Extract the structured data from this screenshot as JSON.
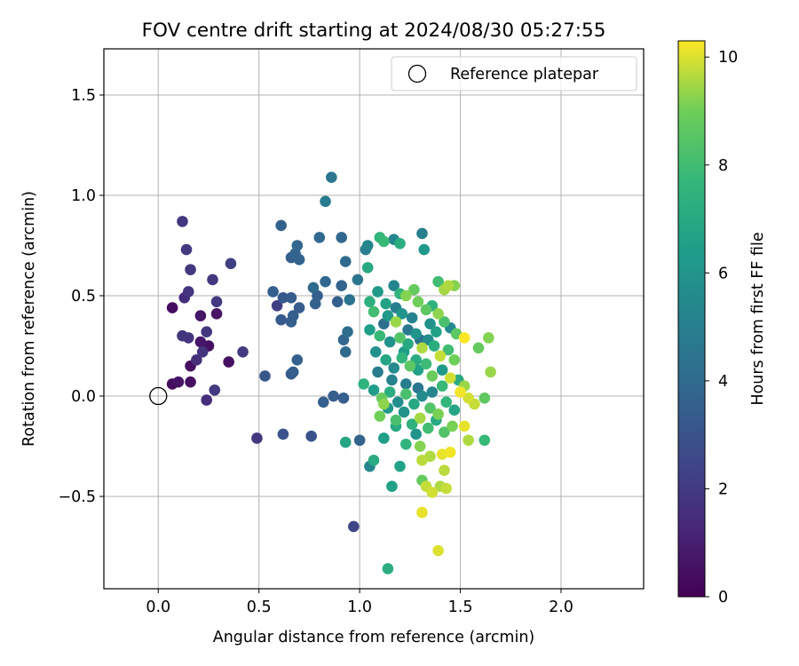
{
  "chart_data": {
    "type": "scatter",
    "title": "FOV centre drift starting at 2024/08/30 05:27:55",
    "xlabel": "Angular distance from reference (arcmin)",
    "ylabel": "Rotation from reference (arcmin)",
    "xlim": [
      -0.27,
      2.41
    ],
    "ylim": [
      -0.96,
      1.73
    ],
    "xticks": [
      "0.0",
      "0.5",
      "1.0",
      "1.5",
      "2.0"
    ],
    "yticks": [
      "−0.5",
      "0.0",
      "0.5",
      "1.0",
      "1.5"
    ],
    "grid": true,
    "legend": {
      "position": "top-right",
      "entries": [
        {
          "label": "Reference platepar",
          "marker": "open-circle"
        }
      ]
    },
    "reference_point": {
      "x": 0.0,
      "y": 0.0
    },
    "colorbar": {
      "label": "Hours from first FF file",
      "colormap": "viridis",
      "range": [
        0,
        10.3
      ],
      "ticks": [
        "0",
        "2",
        "4",
        "6",
        "8",
        "10"
      ]
    },
    "points": [
      {
        "x": 0.07,
        "y": 0.44,
        "h": 0.4
      },
      {
        "x": 0.12,
        "y": 0.87,
        "h": 1.9
      },
      {
        "x": 0.14,
        "y": 0.73,
        "h": 2.0
      },
      {
        "x": 0.16,
        "y": 0.63,
        "h": 1.9
      },
      {
        "x": 0.13,
        "y": 0.49,
        "h": 1.5
      },
      {
        "x": 0.15,
        "y": 0.52,
        "h": 1.8
      },
      {
        "x": 0.21,
        "y": 0.4,
        "h": 0.7
      },
      {
        "x": 0.27,
        "y": 0.58,
        "h": 1.9
      },
      {
        "x": 0.29,
        "y": 0.47,
        "h": 2.0
      },
      {
        "x": 0.29,
        "y": 0.41,
        "h": 0.6
      },
      {
        "x": 0.36,
        "y": 0.66,
        "h": 2.2
      },
      {
        "x": 0.12,
        "y": 0.3,
        "h": 1.8
      },
      {
        "x": 0.15,
        "y": 0.29,
        "h": 1.8
      },
      {
        "x": 0.21,
        "y": 0.27,
        "h": 0.7
      },
      {
        "x": 0.25,
        "y": 0.25,
        "h": 0.5
      },
      {
        "x": 0.24,
        "y": 0.32,
        "h": 1.9
      },
      {
        "x": 0.22,
        "y": 0.22,
        "h": 1.7
      },
      {
        "x": 0.19,
        "y": 0.18,
        "h": 1.6
      },
      {
        "x": 0.16,
        "y": 0.15,
        "h": 0.5
      },
      {
        "x": 0.16,
        "y": 0.07,
        "h": 0.5
      },
      {
        "x": 0.07,
        "y": 0.06,
        "h": 0.4
      },
      {
        "x": 0.1,
        "y": 0.07,
        "h": 0.6
      },
      {
        "x": 0.28,
        "y": 0.03,
        "h": 2.0
      },
      {
        "x": 0.24,
        "y": -0.02,
        "h": 1.5
      },
      {
        "x": 0.35,
        "y": 0.17,
        "h": 0.5
      },
      {
        "x": 0.42,
        "y": 0.22,
        "h": 2.0
      },
      {
        "x": 0.49,
        "y": -0.21,
        "h": 1.9
      },
      {
        "x": 0.53,
        "y": 0.1,
        "h": 3.2
      },
      {
        "x": 0.61,
        "y": 0.85,
        "h": 3.6
      },
      {
        "x": 0.57,
        "y": 0.52,
        "h": 3.5
      },
      {
        "x": 0.59,
        "y": 0.45,
        "h": 2.2
      },
      {
        "x": 0.62,
        "y": 0.49,
        "h": 3.3
      },
      {
        "x": 0.61,
        "y": 0.38,
        "h": 3.3
      },
      {
        "x": 0.62,
        "y": -0.19,
        "h": 3.0
      },
      {
        "x": 0.66,
        "y": 0.11,
        "h": 3.3
      },
      {
        "x": 0.67,
        "y": 0.12,
        "h": 3.5
      },
      {
        "x": 0.69,
        "y": 0.18,
        "h": 3.6
      },
      {
        "x": 0.66,
        "y": 0.37,
        "h": 3.5
      },
      {
        "x": 0.67,
        "y": 0.4,
        "h": 3.5
      },
      {
        "x": 0.66,
        "y": 0.49,
        "h": 3.4
      },
      {
        "x": 0.7,
        "y": 0.44,
        "h": 3.4
      },
      {
        "x": 0.69,
        "y": 0.75,
        "h": 3.8
      },
      {
        "x": 0.68,
        "y": 0.71,
        "h": 3.7
      },
      {
        "x": 0.7,
        "y": 0.68,
        "h": 3.7
      },
      {
        "x": 0.66,
        "y": 0.69,
        "h": 3.4
      },
      {
        "x": 0.76,
        "y": -0.2,
        "h": 3.0
      },
      {
        "x": 0.77,
        "y": 0.54,
        "h": 4.0
      },
      {
        "x": 0.78,
        "y": 0.46,
        "h": 3.6
      },
      {
        "x": 0.79,
        "y": 0.5,
        "h": 3.5
      },
      {
        "x": 0.8,
        "y": 0.79,
        "h": 3.9
      },
      {
        "x": 0.82,
        "y": -0.03,
        "h": 3.5
      },
      {
        "x": 0.83,
        "y": 0.97,
        "h": 4.8
      },
      {
        "x": 0.83,
        "y": 0.57,
        "h": 3.8
      },
      {
        "x": 0.86,
        "y": 1.09,
        "h": 4.5
      },
      {
        "x": 0.87,
        "y": 0.0,
        "h": 3.4
      },
      {
        "x": 0.89,
        "y": 0.47,
        "h": 3.5
      },
      {
        "x": 0.91,
        "y": 0.79,
        "h": 3.9
      },
      {
        "x": 0.91,
        "y": 0.55,
        "h": 3.7
      },
      {
        "x": 0.92,
        "y": 0.28,
        "h": 3.8
      },
      {
        "x": 0.93,
        "y": 0.67,
        "h": 4.0
      },
      {
        "x": 0.94,
        "y": 0.32,
        "h": 4.2
      },
      {
        "x": 0.95,
        "y": 0.48,
        "h": 4.4
      },
      {
        "x": 0.92,
        "y": -0.01,
        "h": 3.5
      },
      {
        "x": 0.93,
        "y": -0.23,
        "h": 6.8
      },
      {
        "x": 0.93,
        "y": 0.22,
        "h": 4.0
      },
      {
        "x": 0.97,
        "y": -0.65,
        "h": 2.4
      },
      {
        "x": 0.99,
        "y": 0.58,
        "h": 4.5
      },
      {
        "x": 1.0,
        "y": -0.22,
        "h": 3.7
      },
      {
        "x": 1.03,
        "y": 0.73,
        "h": 4.8
      },
      {
        "x": 1.04,
        "y": 0.64,
        "h": 7.0
      },
      {
        "x": 1.04,
        "y": 0.75,
        "h": 5.3
      },
      {
        "x": 1.1,
        "y": 0.79,
        "h": 7.6
      },
      {
        "x": 1.12,
        "y": 0.77,
        "h": 7.8
      },
      {
        "x": 1.17,
        "y": 0.78,
        "h": 5.4
      },
      {
        "x": 1.2,
        "y": 0.76,
        "h": 7.2
      },
      {
        "x": 1.31,
        "y": 0.81,
        "h": 5.0
      },
      {
        "x": 1.32,
        "y": 0.73,
        "h": 6.2
      },
      {
        "x": 1.05,
        "y": -0.35,
        "h": 5.4
      },
      {
        "x": 1.07,
        "y": -0.32,
        "h": 7.1
      },
      {
        "x": 1.16,
        "y": -0.45,
        "h": 6.6
      },
      {
        "x": 1.14,
        "y": -0.86,
        "h": 7.2
      },
      {
        "x": 1.2,
        "y": -0.35,
        "h": 6.7
      },
      {
        "x": 1.12,
        "y": -0.21,
        "h": 6.5
      },
      {
        "x": 1.18,
        "y": -0.15,
        "h": 7.0
      },
      {
        "x": 1.23,
        "y": -0.24,
        "h": 7.5
      },
      {
        "x": 1.28,
        "y": -0.19,
        "h": 6.0
      },
      {
        "x": 1.31,
        "y": -0.42,
        "h": 8.8
      },
      {
        "x": 1.33,
        "y": -0.45,
        "h": 9.8
      },
      {
        "x": 1.36,
        "y": -0.48,
        "h": 9.9
      },
      {
        "x": 1.4,
        "y": -0.45,
        "h": 9.6
      },
      {
        "x": 1.43,
        "y": -0.46,
        "h": 9.8
      },
      {
        "x": 1.31,
        "y": -0.58,
        "h": 10.1
      },
      {
        "x": 1.39,
        "y": -0.77,
        "h": 10.0
      },
      {
        "x": 1.42,
        "y": -0.37,
        "h": 9.7
      },
      {
        "x": 1.3,
        "y": -0.25,
        "h": 9.2
      },
      {
        "x": 1.31,
        "y": -0.32,
        "h": 9.7
      },
      {
        "x": 1.35,
        "y": -0.3,
        "h": 9.6
      },
      {
        "x": 1.41,
        "y": -0.29,
        "h": 10.1
      },
      {
        "x": 1.45,
        "y": -0.28,
        "h": 10.2
      },
      {
        "x": 1.52,
        "y": -0.15,
        "h": 10.1
      },
      {
        "x": 1.54,
        "y": -0.22,
        "h": 9.6
      },
      {
        "x": 1.62,
        "y": -0.22,
        "h": 7.8
      },
      {
        "x": 1.44,
        "y": 0.55,
        "h": 9.6
      },
      {
        "x": 1.42,
        "y": 0.53,
        "h": 9.5
      },
      {
        "x": 1.47,
        "y": 0.55,
        "h": 9.2
      },
      {
        "x": 1.39,
        "y": 0.57,
        "h": 8.0
      },
      {
        "x": 1.52,
        "y": 0.29,
        "h": 10.3
      },
      {
        "x": 1.64,
        "y": 0.29,
        "h": 9.2
      },
      {
        "x": 1.59,
        "y": 0.24,
        "h": 8.8
      },
      {
        "x": 1.65,
        "y": 0.12,
        "h": 9.4
      },
      {
        "x": 1.62,
        "y": -0.01,
        "h": 8.7
      },
      {
        "x": 1.54,
        "y": -0.01,
        "h": 9.9
      },
      {
        "x": 1.57,
        "y": -0.04,
        "h": 9.8
      },
      {
        "x": 1.5,
        "y": 0.02,
        "h": 10.2
      },
      {
        "x": 1.09,
        "y": 0.52,
        "h": 6.2
      },
      {
        "x": 1.13,
        "y": 0.46,
        "h": 6.6
      },
      {
        "x": 1.17,
        "y": 0.55,
        "h": 5.3
      },
      {
        "x": 1.2,
        "y": 0.51,
        "h": 7.5
      },
      {
        "x": 1.23,
        "y": 0.5,
        "h": 9.2
      },
      {
        "x": 1.27,
        "y": 0.53,
        "h": 8.8
      },
      {
        "x": 1.07,
        "y": 0.42,
        "h": 8.0
      },
      {
        "x": 1.14,
        "y": 0.4,
        "h": 6.2
      },
      {
        "x": 1.18,
        "y": 0.37,
        "h": 9.4
      },
      {
        "x": 1.21,
        "y": 0.41,
        "h": 6.0
      },
      {
        "x": 1.26,
        "y": 0.39,
        "h": 5.2
      },
      {
        "x": 1.29,
        "y": 0.47,
        "h": 9.0
      },
      {
        "x": 1.33,
        "y": 0.43,
        "h": 8.6
      },
      {
        "x": 1.36,
        "y": 0.45,
        "h": 7.4
      },
      {
        "x": 1.39,
        "y": 0.41,
        "h": 9.3
      },
      {
        "x": 1.42,
        "y": 0.37,
        "h": 8.2
      },
      {
        "x": 1.45,
        "y": 0.34,
        "h": 5.5
      },
      {
        "x": 1.48,
        "y": 0.31,
        "h": 8.6
      },
      {
        "x": 1.05,
        "y": 0.33,
        "h": 6.5
      },
      {
        "x": 1.1,
        "y": 0.3,
        "h": 7.8
      },
      {
        "x": 1.15,
        "y": 0.27,
        "h": 5.9
      },
      {
        "x": 1.2,
        "y": 0.29,
        "h": 8.4
      },
      {
        "x": 1.24,
        "y": 0.26,
        "h": 7.0
      },
      {
        "x": 1.28,
        "y": 0.31,
        "h": 6.0
      },
      {
        "x": 1.31,
        "y": 0.24,
        "h": 9.6
      },
      {
        "x": 1.34,
        "y": 0.28,
        "h": 5.6
      },
      {
        "x": 1.37,
        "y": 0.25,
        "h": 7.2
      },
      {
        "x": 1.4,
        "y": 0.2,
        "h": 9.8
      },
      {
        "x": 1.44,
        "y": 0.23,
        "h": 8.0
      },
      {
        "x": 1.47,
        "y": 0.18,
        "h": 9.0
      },
      {
        "x": 1.08,
        "y": 0.22,
        "h": 5.8
      },
      {
        "x": 1.13,
        "y": 0.18,
        "h": 6.8
      },
      {
        "x": 1.17,
        "y": 0.14,
        "h": 5.5
      },
      {
        "x": 1.21,
        "y": 0.19,
        "h": 7.6
      },
      {
        "x": 1.25,
        "y": 0.15,
        "h": 8.6
      },
      {
        "x": 1.29,
        "y": 0.13,
        "h": 6.6
      },
      {
        "x": 1.33,
        "y": 0.16,
        "h": 7.9
      },
      {
        "x": 1.36,
        "y": 0.1,
        "h": 8.9
      },
      {
        "x": 1.41,
        "y": 0.13,
        "h": 6.2
      },
      {
        "x": 1.45,
        "y": 0.09,
        "h": 9.9
      },
      {
        "x": 1.49,
        "y": 0.08,
        "h": 7.0
      },
      {
        "x": 1.52,
        "y": 0.05,
        "h": 9.4
      },
      {
        "x": 1.02,
        "y": 0.06,
        "h": 7.5
      },
      {
        "x": 1.07,
        "y": 0.03,
        "h": 6.4
      },
      {
        "x": 1.11,
        "y": -0.01,
        "h": 8.8
      },
      {
        "x": 1.15,
        "y": 0.02,
        "h": 7.2
      },
      {
        "x": 1.19,
        "y": -0.03,
        "h": 5.7
      },
      {
        "x": 1.23,
        "y": 0.01,
        "h": 8.2
      },
      {
        "x": 1.27,
        "y": -0.04,
        "h": 6.9
      },
      {
        "x": 1.31,
        "y": 0.0,
        "h": 5.6
      },
      {
        "x": 1.35,
        "y": -0.06,
        "h": 8.4
      },
      {
        "x": 1.39,
        "y": -0.09,
        "h": 9.1
      },
      {
        "x": 1.43,
        "y": -0.03,
        "h": 7.6
      },
      {
        "x": 1.47,
        "y": -0.07,
        "h": 6.8
      },
      {
        "x": 1.1,
        "y": -0.1,
        "h": 9.0
      },
      {
        "x": 1.14,
        "y": -0.06,
        "h": 6.2
      },
      {
        "x": 1.18,
        "y": -0.12,
        "h": 8.2
      },
      {
        "x": 1.22,
        "y": -0.08,
        "h": 5.9
      },
      {
        "x": 1.26,
        "y": -0.14,
        "h": 7.4
      },
      {
        "x": 1.3,
        "y": -0.11,
        "h": 9.5
      },
      {
        "x": 1.34,
        "y": -0.16,
        "h": 8.0
      },
      {
        "x": 1.38,
        "y": -0.12,
        "h": 7.0
      },
      {
        "x": 1.42,
        "y": -0.18,
        "h": 8.4
      },
      {
        "x": 1.46,
        "y": -0.15,
        "h": 9.1
      },
      {
        "x": 1.12,
        "y": 0.36,
        "h": 4.2
      },
      {
        "x": 1.18,
        "y": 0.44,
        "h": 5.0
      },
      {
        "x": 1.24,
        "y": 0.33,
        "h": 4.6
      },
      {
        "x": 1.3,
        "y": 0.28,
        "h": 4.4
      },
      {
        "x": 1.35,
        "y": 0.36,
        "h": 5.8
      },
      {
        "x": 1.09,
        "y": 0.12,
        "h": 4.8
      },
      {
        "x": 1.16,
        "y": 0.08,
        "h": 5.2
      },
      {
        "x": 1.23,
        "y": 0.06,
        "h": 4.9
      },
      {
        "x": 1.29,
        "y": 0.04,
        "h": 4.5
      },
      {
        "x": 1.36,
        "y": 0.02,
        "h": 5.3
      },
      {
        "x": 1.05,
        "y": 0.47,
        "h": 7.3
      },
      {
        "x": 1.22,
        "y": 0.22,
        "h": 6.4
      },
      {
        "x": 1.38,
        "y": 0.32,
        "h": 6.6
      },
      {
        "x": 1.41,
        "y": 0.05,
        "h": 7.8
      },
      {
        "x": 1.12,
        "y": -0.04,
        "h": 9.3
      },
      {
        "x": 1.28,
        "y": 0.18,
        "h": 7.1
      }
    ]
  }
}
